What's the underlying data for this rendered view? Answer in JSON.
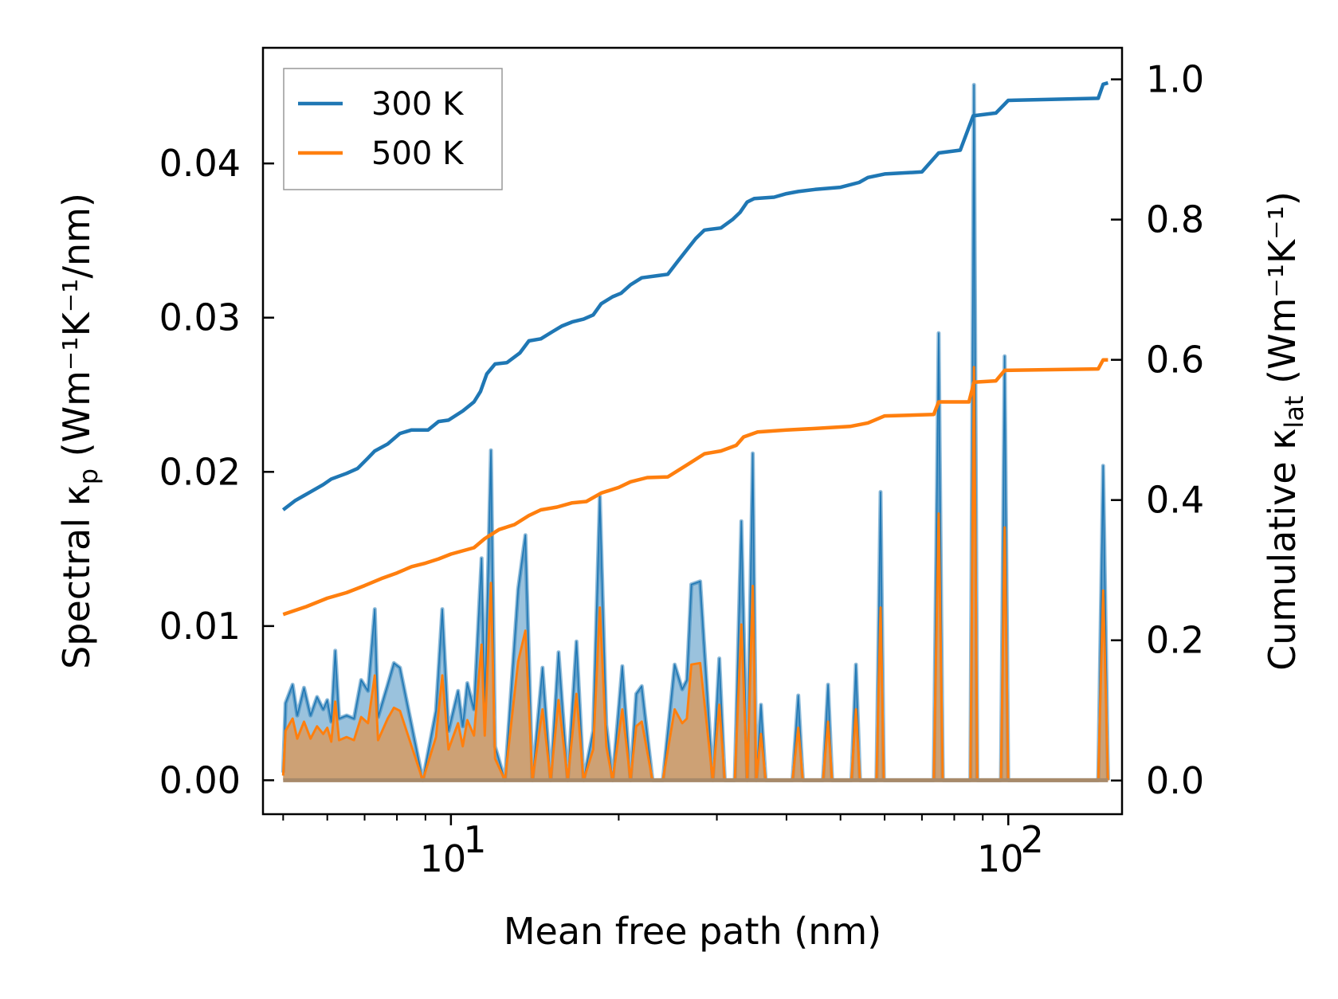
{
  "chart_data": {
    "type": "line",
    "xscale": "log",
    "xlim": [
      4.6,
      160
    ],
    "x_major_ticks": [
      10,
      100
    ],
    "x_tick_labels": [
      {
        "base": "10",
        "exp": "1"
      },
      {
        "base": "10",
        "exp": "2"
      }
    ],
    "xlabel": "Mean free path (nm)",
    "y_left": {
      "label_prefix": "Spectral κ",
      "label_sub": "p",
      "label_unit": "(Wm⁻¹K⁻¹/nm)",
      "ylim": [
        -0.0022,
        0.0475
      ],
      "ticks": [
        0.0,
        0.01,
        0.02,
        0.03,
        0.04
      ],
      "tick_labels": [
        "0.00",
        "0.01",
        "0.02",
        "0.03",
        "0.04"
      ]
    },
    "y_right": {
      "label_prefix": "Cumulative κ",
      "label_sub": "lat",
      "label_unit": "(Wm⁻¹K⁻¹)",
      "ylim": [
        -0.048,
        1.045
      ],
      "ticks": [
        0.0,
        0.2,
        0.4,
        0.6,
        0.8,
        1.0
      ],
      "tick_labels": [
        "0.0",
        "0.2",
        "0.4",
        "0.6",
        "0.8",
        "1.0"
      ]
    },
    "legend": {
      "placement": "upper-left",
      "entries": [
        {
          "label": "300 K",
          "color": "#1f77b4"
        },
        {
          "label": "500 K",
          "color": "#ff7f0e"
        }
      ]
    },
    "spectral_300K": [
      [
        5.0,
        0.0005
      ],
      [
        5.05,
        0.005
      ],
      [
        5.2,
        0.0062
      ],
      [
        5.3,
        0.0042
      ],
      [
        5.45,
        0.006
      ],
      [
        5.6,
        0.0042
      ],
      [
        5.75,
        0.0054
      ],
      [
        5.9,
        0.0046
      ],
      [
        6.0,
        0.0052
      ],
      [
        6.1,
        0.0038
      ],
      [
        6.2,
        0.0084
      ],
      [
        6.3,
        0.004
      ],
      [
        6.5,
        0.0042
      ],
      [
        6.7,
        0.004
      ],
      [
        6.9,
        0.0065
      ],
      [
        7.1,
        0.0058
      ],
      [
        7.3,
        0.0111
      ],
      [
        7.4,
        0.0041
      ],
      [
        7.7,
        0.0062
      ],
      [
        7.9,
        0.0076
      ],
      [
        8.1,
        0.0073
      ],
      [
        8.9,
        0.0
      ],
      [
        9.4,
        0.0045
      ],
      [
        9.65,
        0.0111
      ],
      [
        9.9,
        0.0032
      ],
      [
        10.3,
        0.0058
      ],
      [
        10.5,
        0.0035
      ],
      [
        10.7,
        0.0063
      ],
      [
        11.0,
        0.0046
      ],
      [
        11.35,
        0.0144
      ],
      [
        11.5,
        0.0046
      ],
      [
        11.8,
        0.0214
      ],
      [
        12.0,
        0.0022
      ],
      [
        12.5,
        0.0
      ],
      [
        13.2,
        0.0124
      ],
      [
        13.6,
        0.0159
      ],
      [
        14.0,
        0.0
      ],
      [
        14.6,
        0.0073
      ],
      [
        15.1,
        0.0
      ],
      [
        15.6,
        0.0083
      ],
      [
        16.2,
        0.0
      ],
      [
        16.8,
        0.009
      ],
      [
        17.3,
        0.0
      ],
      [
        18.0,
        0.0032
      ],
      [
        18.5,
        0.0184
      ],
      [
        19.0,
        0.0036
      ],
      [
        19.5,
        0.0
      ],
      [
        20.3,
        0.0074
      ],
      [
        21.0,
        0.0
      ],
      [
        21.5,
        0.0056
      ],
      [
        22.0,
        0.0061
      ],
      [
        23.0,
        0.0
      ],
      [
        24.0,
        0.0
      ],
      [
        25.2,
        0.0075
      ],
      [
        26.0,
        0.0059
      ],
      [
        26.5,
        0.0065
      ],
      [
        27.0,
        0.0127
      ],
      [
        28.0,
        0.0129
      ],
      [
        29.5,
        0.0
      ],
      [
        30.3,
        0.0079
      ],
      [
        31.0,
        0.0
      ],
      [
        32.3,
        0.0
      ],
      [
        33.2,
        0.0168
      ],
      [
        34.0,
        0.0
      ],
      [
        34.8,
        0.0212
      ],
      [
        35.3,
        0.0
      ],
      [
        36.0,
        0.0049
      ],
      [
        36.7,
        0.0
      ],
      [
        41.0,
        0.0
      ],
      [
        42.0,
        0.0055
      ],
      [
        42.8,
        0.0
      ],
      [
        46.5,
        0.0
      ],
      [
        47.5,
        0.0062
      ],
      [
        48.3,
        0.0
      ],
      [
        52.3,
        0.0
      ],
      [
        53.3,
        0.0075
      ],
      [
        54.2,
        0.0
      ],
      [
        58.0,
        0.0
      ],
      [
        59.0,
        0.0187
      ],
      [
        59.8,
        0.0
      ],
      [
        73.5,
        0.0
      ],
      [
        75.0,
        0.029
      ],
      [
        76.3,
        0.0
      ],
      [
        85.5,
        0.0
      ],
      [
        86.8,
        0.0451
      ],
      [
        88.0,
        0.0
      ],
      [
        97.0,
        0.0
      ],
      [
        98.5,
        0.0275
      ],
      [
        100.0,
        0.0
      ],
      [
        145.0,
        0.0
      ],
      [
        148.0,
        0.0204
      ],
      [
        151.0,
        0.0
      ]
    ],
    "spectral_500K": [
      [
        5.0,
        0.0003
      ],
      [
        5.05,
        0.0032
      ],
      [
        5.2,
        0.004
      ],
      [
        5.3,
        0.0027
      ],
      [
        5.45,
        0.0038
      ],
      [
        5.6,
        0.0027
      ],
      [
        5.75,
        0.0035
      ],
      [
        5.9,
        0.003
      ],
      [
        6.0,
        0.0034
      ],
      [
        6.1,
        0.0025
      ],
      [
        6.2,
        0.0051
      ],
      [
        6.3,
        0.0026
      ],
      [
        6.5,
        0.0028
      ],
      [
        6.7,
        0.0026
      ],
      [
        6.9,
        0.0041
      ],
      [
        7.1,
        0.0037
      ],
      [
        7.3,
        0.0068
      ],
      [
        7.4,
        0.0026
      ],
      [
        7.7,
        0.004
      ],
      [
        7.9,
        0.0047
      ],
      [
        8.1,
        0.0045
      ],
      [
        8.9,
        0.0
      ],
      [
        9.4,
        0.0028
      ],
      [
        9.65,
        0.0068
      ],
      [
        9.9,
        0.002
      ],
      [
        10.3,
        0.0037
      ],
      [
        10.5,
        0.0022
      ],
      [
        10.7,
        0.0039
      ],
      [
        11.0,
        0.0029
      ],
      [
        11.35,
        0.0088
      ],
      [
        11.5,
        0.0029
      ],
      [
        11.8,
        0.0128
      ],
      [
        12.0,
        0.0014
      ],
      [
        12.5,
        0.0
      ],
      [
        13.2,
        0.0077
      ],
      [
        13.6,
        0.0097
      ],
      [
        14.0,
        0.0
      ],
      [
        14.6,
        0.0046
      ],
      [
        15.1,
        0.0
      ],
      [
        15.6,
        0.0052
      ],
      [
        16.2,
        0.0
      ],
      [
        16.8,
        0.0056
      ],
      [
        17.3,
        0.0
      ],
      [
        18.0,
        0.002
      ],
      [
        18.5,
        0.0112
      ],
      [
        19.0,
        0.0022
      ],
      [
        19.5,
        0.0
      ],
      [
        20.3,
        0.0046
      ],
      [
        21.0,
        0.0
      ],
      [
        21.5,
        0.0035
      ],
      [
        22.0,
        0.0038
      ],
      [
        23.0,
        0.0
      ],
      [
        24.0,
        0.0
      ],
      [
        25.2,
        0.0046
      ],
      [
        26.0,
        0.0037
      ],
      [
        26.5,
        0.004
      ],
      [
        27.0,
        0.0075
      ],
      [
        28.0,
        0.0076
      ],
      [
        29.5,
        0.0
      ],
      [
        30.3,
        0.0049
      ],
      [
        31.0,
        0.0
      ],
      [
        32.3,
        0.0
      ],
      [
        33.2,
        0.0101
      ],
      [
        34.0,
        0.0
      ],
      [
        34.8,
        0.0126
      ],
      [
        35.3,
        0.0
      ],
      [
        36.0,
        0.003
      ],
      [
        36.7,
        0.0
      ],
      [
        41.0,
        0.0
      ],
      [
        42.0,
        0.0034
      ],
      [
        42.8,
        0.0
      ],
      [
        46.5,
        0.0
      ],
      [
        47.5,
        0.0038
      ],
      [
        48.3,
        0.0
      ],
      [
        52.3,
        0.0
      ],
      [
        53.3,
        0.0046
      ],
      [
        54.2,
        0.0
      ],
      [
        58.0,
        0.0
      ],
      [
        59.0,
        0.0112
      ],
      [
        59.8,
        0.0
      ],
      [
        73.5,
        0.0
      ],
      [
        75.0,
        0.0173
      ],
      [
        76.3,
        0.0
      ],
      [
        85.5,
        0.0
      ],
      [
        86.8,
        0.0268
      ],
      [
        88.0,
        0.0
      ],
      [
        97.0,
        0.0
      ],
      [
        98.5,
        0.0164
      ],
      [
        100.0,
        0.0
      ],
      [
        145.0,
        0.0
      ],
      [
        148.0,
        0.0123
      ],
      [
        151.0,
        0.0
      ]
    ],
    "cumulative_300K": [
      [
        5.0,
        0.386
      ],
      [
        5.25,
        0.399
      ],
      [
        5.55,
        0.41
      ],
      [
        5.9,
        0.422
      ],
      [
        6.1,
        0.43
      ],
      [
        6.5,
        0.438
      ],
      [
        6.8,
        0.445
      ],
      [
        7.1,
        0.46
      ],
      [
        7.3,
        0.47
      ],
      [
        7.7,
        0.48
      ],
      [
        8.1,
        0.495
      ],
      [
        8.5,
        0.5
      ],
      [
        9.1,
        0.5
      ],
      [
        9.5,
        0.512
      ],
      [
        9.9,
        0.514
      ],
      [
        10.5,
        0.527
      ],
      [
        11.0,
        0.54
      ],
      [
        11.3,
        0.555
      ],
      [
        11.6,
        0.58
      ],
      [
        12.0,
        0.594
      ],
      [
        12.6,
        0.596
      ],
      [
        13.3,
        0.61
      ],
      [
        13.8,
        0.627
      ],
      [
        14.5,
        0.63
      ],
      [
        15.2,
        0.64
      ],
      [
        15.8,
        0.648
      ],
      [
        16.5,
        0.654
      ],
      [
        17.3,
        0.658
      ],
      [
        18.0,
        0.664
      ],
      [
        18.6,
        0.68
      ],
      [
        19.5,
        0.69
      ],
      [
        20.2,
        0.695
      ],
      [
        21.0,
        0.707
      ],
      [
        22.0,
        0.717
      ],
      [
        23.5,
        0.72
      ],
      [
        24.5,
        0.722
      ],
      [
        25.5,
        0.74
      ],
      [
        26.5,
        0.757
      ],
      [
        27.5,
        0.773
      ],
      [
        28.5,
        0.785
      ],
      [
        30.5,
        0.788
      ],
      [
        32.0,
        0.8
      ],
      [
        33.0,
        0.81
      ],
      [
        34.0,
        0.825
      ],
      [
        35.0,
        0.83
      ],
      [
        38.0,
        0.832
      ],
      [
        40.0,
        0.837
      ],
      [
        42.0,
        0.84
      ],
      [
        45.0,
        0.843
      ],
      [
        50.0,
        0.846
      ],
      [
        54.0,
        0.853
      ],
      [
        56.0,
        0.86
      ],
      [
        60.0,
        0.865
      ],
      [
        70.0,
        0.868
      ],
      [
        75.0,
        0.895
      ],
      [
        82.0,
        0.899
      ],
      [
        86.5,
        0.948
      ],
      [
        95.0,
        0.952
      ],
      [
        100.0,
        0.97
      ],
      [
        145.0,
        0.973
      ],
      [
        148.0,
        0.993
      ],
      [
        151.0,
        0.995
      ]
    ],
    "cumulative_500K": [
      [
        5.0,
        0.237
      ],
      [
        5.5,
        0.248
      ],
      [
        6.0,
        0.26
      ],
      [
        6.5,
        0.268
      ],
      [
        7.0,
        0.278
      ],
      [
        7.5,
        0.288
      ],
      [
        8.0,
        0.296
      ],
      [
        8.5,
        0.305
      ],
      [
        9.0,
        0.31
      ],
      [
        9.5,
        0.316
      ],
      [
        10.0,
        0.323
      ],
      [
        11.0,
        0.332
      ],
      [
        11.5,
        0.345
      ],
      [
        12.2,
        0.358
      ],
      [
        13.0,
        0.365
      ],
      [
        13.8,
        0.378
      ],
      [
        14.5,
        0.386
      ],
      [
        15.5,
        0.39
      ],
      [
        16.5,
        0.396
      ],
      [
        17.5,
        0.398
      ],
      [
        18.6,
        0.41
      ],
      [
        20.0,
        0.418
      ],
      [
        21.0,
        0.426
      ],
      [
        22.5,
        0.432
      ],
      [
        24.5,
        0.433
      ],
      [
        26.5,
        0.45
      ],
      [
        28.5,
        0.466
      ],
      [
        30.5,
        0.47
      ],
      [
        32.5,
        0.478
      ],
      [
        33.5,
        0.49
      ],
      [
        35.5,
        0.497
      ],
      [
        40.0,
        0.5
      ],
      [
        45.0,
        0.502
      ],
      [
        52.0,
        0.505
      ],
      [
        56.0,
        0.51
      ],
      [
        60.0,
        0.52
      ],
      [
        73.5,
        0.522
      ],
      [
        75.0,
        0.54
      ],
      [
        85.0,
        0.54
      ],
      [
        86.8,
        0.568
      ],
      [
        95.0,
        0.57
      ],
      [
        98.5,
        0.585
      ],
      [
        145.0,
        0.587
      ],
      [
        148.0,
        0.6
      ],
      [
        151.0,
        0.6
      ]
    ]
  }
}
